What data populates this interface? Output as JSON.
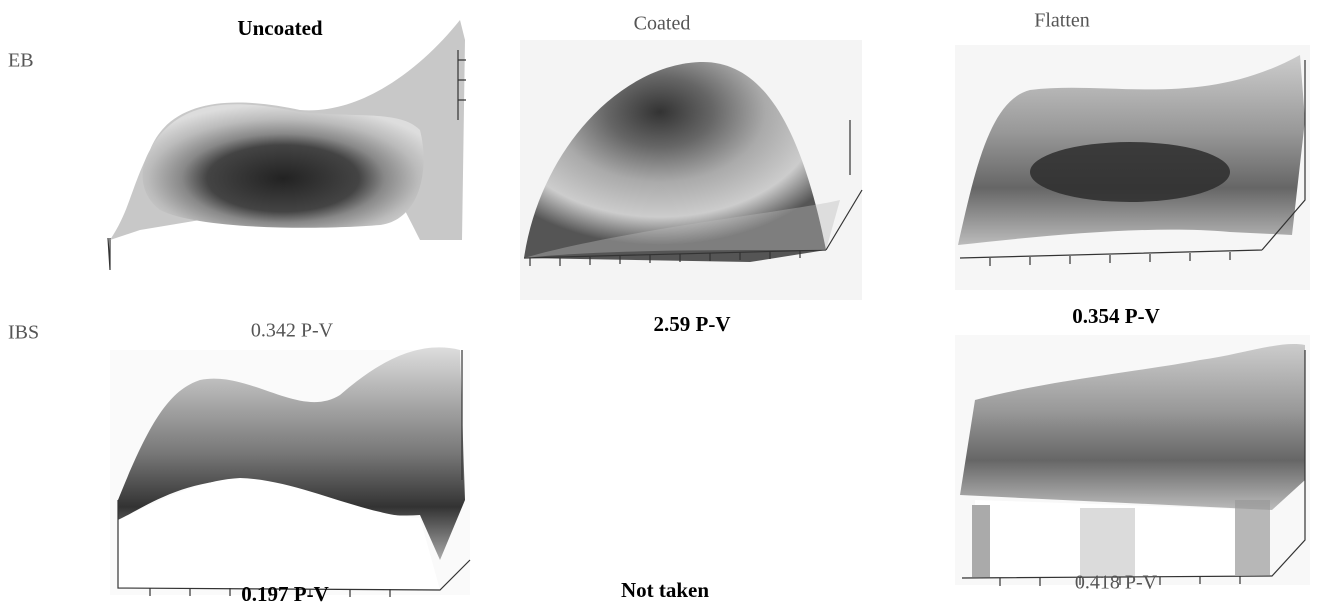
{
  "columns": [
    "Uncoated",
    "Coated",
    "Flatten"
  ],
  "rows": [
    "EB",
    "IBS"
  ],
  "captions": {
    "eb_uncoated": "0.342 P-V",
    "eb_coated": "2.59 P-V",
    "eb_flatten": "0.354 P-V",
    "ibs_uncoated": "0.197 P-V",
    "ibs_coated": "Not taken",
    "ibs_flatten": "0.418 P-V"
  }
}
